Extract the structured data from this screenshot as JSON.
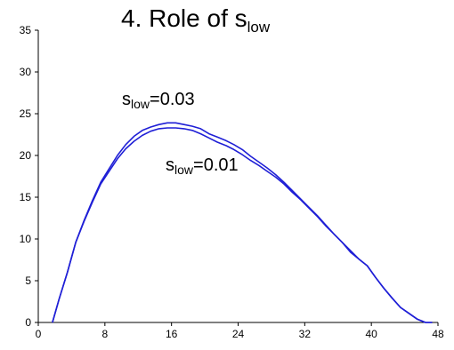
{
  "chart_data": {
    "type": "line",
    "title": {
      "main": "4.   Role of s",
      "sub": "low"
    },
    "xlabel": "",
    "ylabel": "",
    "xlim": [
      0,
      48
    ],
    "ylim": [
      0,
      35
    ],
    "xticks": [
      0,
      8,
      16,
      24,
      32,
      40,
      48
    ],
    "yticks": [
      0,
      5,
      10,
      15,
      20,
      25,
      30,
      35
    ],
    "grid": false,
    "line_color": "#1f1fd6",
    "series": [
      {
        "label": {
          "main": "s",
          "sub": "low",
          "tail": "=0.03"
        },
        "x": [
          1.7,
          2.5,
          3.5,
          4.5,
          5.5,
          6.5,
          7.5,
          8.5,
          9.5,
          10.5,
          11.5,
          12.5,
          13.5,
          14.5,
          15.5,
          16.5,
          17.5,
          18.5,
          19.5,
          20.5,
          21.5,
          22.5,
          23.5,
          24.5,
          25.5,
          26.5,
          27.5,
          28.5,
          29.5,
          30.5,
          31.5,
          32.5,
          33.5,
          34.5,
          35.5,
          36.5,
          37.5,
          38.5,
          39.5,
          40.5,
          41.5,
          42.5,
          43.5,
          44.5,
          45.5,
          46.5,
          47.3
        ],
        "y": [
          0,
          2.8,
          6.0,
          9.6,
          12.2,
          14.6,
          16.8,
          18.4,
          20.0,
          21.3,
          22.3,
          23.0,
          23.4,
          23.7,
          23.9,
          23.9,
          23.7,
          23.5,
          23.2,
          22.6,
          22.2,
          21.8,
          21.3,
          20.7,
          19.9,
          19.2,
          18.5,
          17.7,
          16.8,
          15.8,
          14.8,
          13.8,
          12.8,
          11.7,
          10.6,
          9.6,
          8.4,
          7.6,
          6.8,
          5.4,
          4.1,
          2.9,
          1.8,
          1.1,
          0.4,
          0.0,
          0.0
        ]
      },
      {
        "label": {
          "main": "s",
          "sub": "low",
          "tail": "=0.01"
        },
        "x": [
          1.7,
          2.5,
          3.5,
          4.5,
          5.5,
          6.5,
          7.5,
          8.5,
          9.5,
          10.5,
          11.5,
          12.5,
          13.5,
          14.5,
          15.5,
          16.5,
          17.5,
          18.5,
          19.5,
          20.5,
          21.5,
          22.5,
          23.5,
          24.5,
          25.5,
          26.5,
          27.5,
          28.5,
          29.5,
          30.5,
          31.5,
          32.5,
          33.5,
          34.5,
          35.5,
          36.5,
          37.5,
          38.5,
          39.5,
          40.5,
          41.5,
          42.5,
          43.5,
          44.5,
          45.5,
          46.5,
          47.3
        ],
        "y": [
          0,
          2.8,
          6.0,
          9.6,
          12.1,
          14.4,
          16.6,
          18.1,
          19.6,
          20.8,
          21.7,
          22.4,
          22.9,
          23.2,
          23.3,
          23.3,
          23.2,
          23.0,
          22.6,
          22.1,
          21.6,
          21.2,
          20.7,
          20.1,
          19.4,
          18.8,
          18.1,
          17.4,
          16.6,
          15.6,
          14.7,
          13.7,
          12.7,
          11.6,
          10.6,
          9.6,
          8.6,
          7.6,
          6.8,
          5.4,
          4.1,
          2.9,
          1.8,
          1.1,
          0.4,
          0.0,
          0.0
        ]
      }
    ]
  }
}
